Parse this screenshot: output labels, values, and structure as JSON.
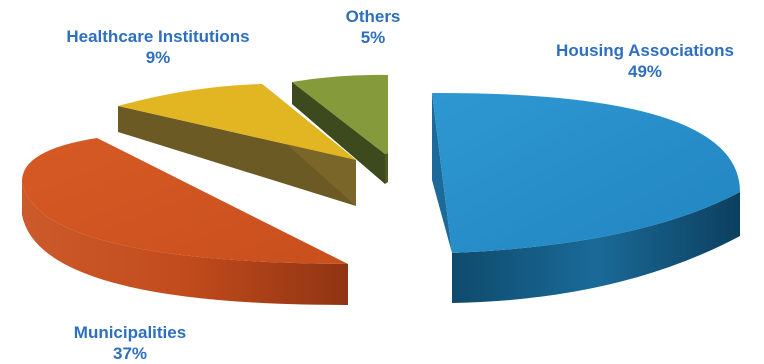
{
  "chart_data": {
    "type": "pie",
    "title": "",
    "categories": [
      "Housing Associations",
      "Municipalities",
      "Healthcare Institutions",
      "Others"
    ],
    "values": [
      49,
      37,
      9,
      5
    ],
    "value_labels": [
      "49%",
      "37%",
      "9%",
      "5%"
    ],
    "colors": {
      "Housing Associations": "#2b8fca",
      "Municipalities": "#cf5420",
      "Healthcare Institutions": "#e2b41f",
      "Others": "#82993a"
    },
    "style": "3d-exploded"
  }
}
